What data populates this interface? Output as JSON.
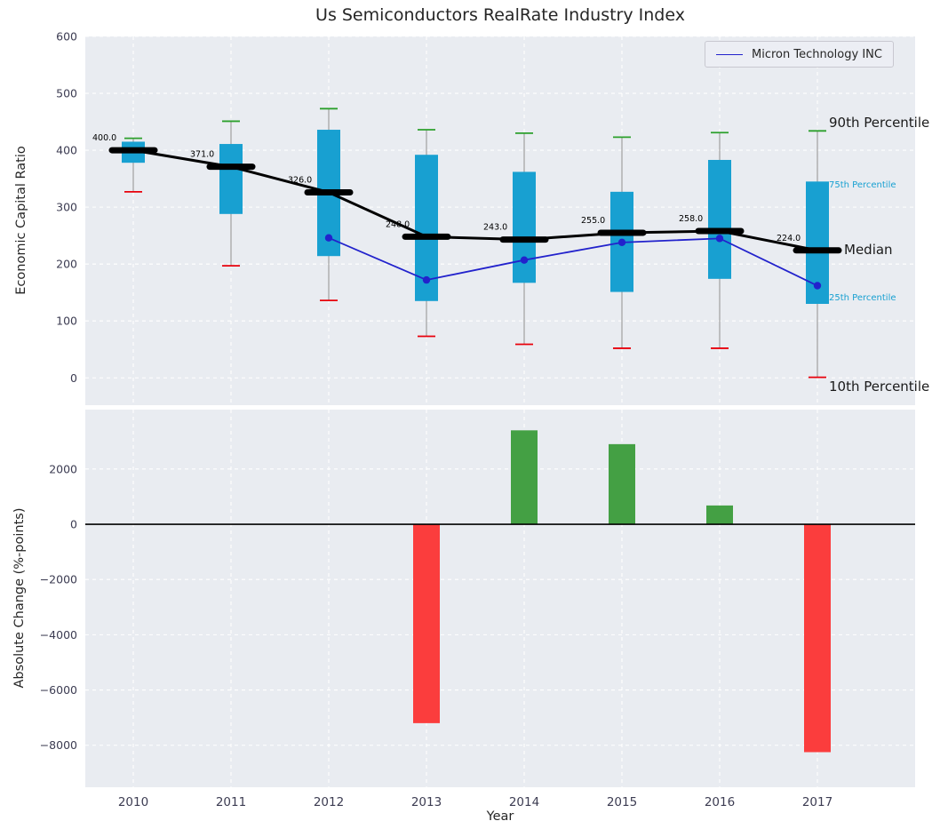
{
  "title": "Us Semiconductors RealRate Industry Index",
  "legend": {
    "label": "Micron Technology INC"
  },
  "axis_labels": {
    "top_y": "Economic Capital Ratio",
    "bottom_y": "Absolute Change (%-points)",
    "x": "Year"
  },
  "percentile_labels": {
    "p90": "90th Percentile",
    "p75": "75th Percentile",
    "median": "Median",
    "p25": "25th Percentile",
    "p10": "10th Percentile"
  },
  "colors": {
    "box": "#18a0d1",
    "whisker": "#a0a0a0",
    "cap_top": "#2ca02c",
    "cap_bottom": "#e8000b",
    "median_line": "#000000",
    "micron_line": "#2222cc",
    "bar_up": "#44a044",
    "bar_down": "#fb3d3d",
    "axes_bg": "#e9ecf1",
    "grid": "#ffffff",
    "tick_text": "#3c3c52",
    "zero_line": "#000000"
  },
  "chart_data": [
    {
      "type": "box",
      "title": "Us Semiconductors RealRate Industry Index",
      "ylabel": "Economic Capital Ratio",
      "ylim": [
        -48,
        600
      ],
      "yticks": [
        0,
        100,
        200,
        300,
        400,
        500,
        600
      ],
      "ytick_labels": [
        "0",
        "100",
        "200",
        "300",
        "400",
        "500",
        "600"
      ],
      "categories": [
        "2010",
        "2011",
        "2012",
        "2013",
        "2014",
        "2015",
        "2016",
        "2017"
      ],
      "grid": true,
      "legend_position": "upper right",
      "boxes": [
        {
          "year": "2010",
          "p10": 327,
          "p25": 378,
          "median": 400,
          "median_label": "400.0",
          "p75": 415,
          "p90": 421
        },
        {
          "year": "2011",
          "p10": 197,
          "p25": 288,
          "median": 371,
          "median_label": "371.0",
          "p75": 411,
          "p90": 451
        },
        {
          "year": "2012",
          "p10": 136,
          "p25": 214,
          "median": 326,
          "median_label": "326.0",
          "p75": 436,
          "p90": 473
        },
        {
          "year": "2013",
          "p10": 73,
          "p25": 135,
          "median": 248,
          "median_label": "248.0",
          "p75": 392,
          "p90": 436
        },
        {
          "year": "2014",
          "p10": 59,
          "p25": 167,
          "median": 243,
          "median_label": "243.0",
          "p75": 362,
          "p90": 430
        },
        {
          "year": "2015",
          "p10": 52,
          "p25": 151,
          "median": 255,
          "median_label": "255.0",
          "p75": 327,
          "p90": 423
        },
        {
          "year": "2016",
          "p10": 52,
          "p25": 174,
          "median": 258,
          "median_label": "258.0",
          "p75": 383,
          "p90": 431
        },
        {
          "year": "2017",
          "p10": 1,
          "p25": 130,
          "median": 224,
          "median_label": "224.0",
          "p75": 345,
          "p90": 434
        }
      ],
      "series": [
        {
          "name": "Micron Technology INC",
          "values": [
            null,
            null,
            246,
            172,
            207,
            238,
            245,
            162
          ]
        }
      ],
      "percentile_annotations": [
        "90th Percentile",
        "75th Percentile",
        "Median",
        "25th Percentile",
        "10th Percentile"
      ]
    },
    {
      "type": "bar",
      "ylabel": "Absolute Change (%-points)",
      "xlabel": "Year",
      "ylim": [
        -9520,
        4150
      ],
      "yticks": [
        2000,
        0,
        -2000,
        -4000,
        -6000,
        -8000
      ],
      "ytick_labels": [
        "2000",
        "0",
        "−2000",
        "−4000",
        "−6000",
        "−8000"
      ],
      "categories": [
        "2010",
        "2011",
        "2012",
        "2013",
        "2014",
        "2015",
        "2016",
        "2017"
      ],
      "values": [
        null,
        null,
        null,
        -7200,
        3400,
        2900,
        680,
        -8250
      ],
      "bar_colors": {
        "positive": "#44a044",
        "negative": "#fb3d3d"
      }
    }
  ]
}
